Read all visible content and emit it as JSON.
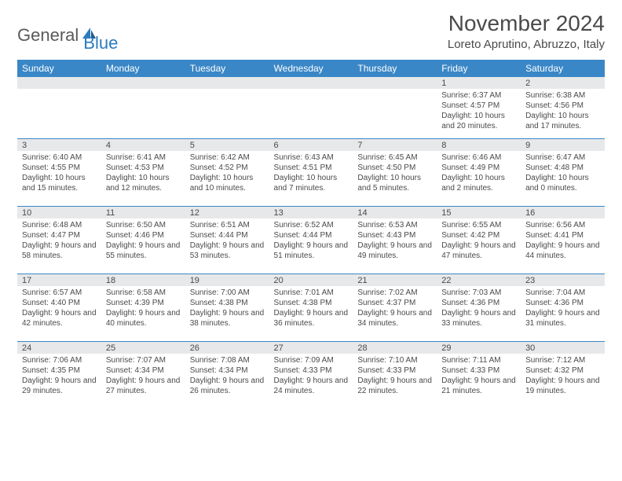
{
  "logo": {
    "part1": "General",
    "part2": "Blue"
  },
  "title": "November 2024",
  "location": "Loreto Aprutino, Abruzzo, Italy",
  "colors": {
    "header_bg": "#3a87c7",
    "header_text": "#ffffff",
    "daynum_bg": "#e7e8e9",
    "border": "#3a87c7",
    "text": "#4a4a4a",
    "logo_blue": "#2b7bbf"
  },
  "weekdays": [
    "Sunday",
    "Monday",
    "Tuesday",
    "Wednesday",
    "Thursday",
    "Friday",
    "Saturday"
  ],
  "weeks": [
    [
      null,
      null,
      null,
      null,
      null,
      {
        "n": "1",
        "sunrise": "6:37 AM",
        "sunset": "4:57 PM",
        "daylight": "10 hours and 20 minutes."
      },
      {
        "n": "2",
        "sunrise": "6:38 AM",
        "sunset": "4:56 PM",
        "daylight": "10 hours and 17 minutes."
      }
    ],
    [
      {
        "n": "3",
        "sunrise": "6:40 AM",
        "sunset": "4:55 PM",
        "daylight": "10 hours and 15 minutes."
      },
      {
        "n": "4",
        "sunrise": "6:41 AM",
        "sunset": "4:53 PM",
        "daylight": "10 hours and 12 minutes."
      },
      {
        "n": "5",
        "sunrise": "6:42 AM",
        "sunset": "4:52 PM",
        "daylight": "10 hours and 10 minutes."
      },
      {
        "n": "6",
        "sunrise": "6:43 AM",
        "sunset": "4:51 PM",
        "daylight": "10 hours and 7 minutes."
      },
      {
        "n": "7",
        "sunrise": "6:45 AM",
        "sunset": "4:50 PM",
        "daylight": "10 hours and 5 minutes."
      },
      {
        "n": "8",
        "sunrise": "6:46 AM",
        "sunset": "4:49 PM",
        "daylight": "10 hours and 2 minutes."
      },
      {
        "n": "9",
        "sunrise": "6:47 AM",
        "sunset": "4:48 PM",
        "daylight": "10 hours and 0 minutes."
      }
    ],
    [
      {
        "n": "10",
        "sunrise": "6:48 AM",
        "sunset": "4:47 PM",
        "daylight": "9 hours and 58 minutes."
      },
      {
        "n": "11",
        "sunrise": "6:50 AM",
        "sunset": "4:46 PM",
        "daylight": "9 hours and 55 minutes."
      },
      {
        "n": "12",
        "sunrise": "6:51 AM",
        "sunset": "4:44 PM",
        "daylight": "9 hours and 53 minutes."
      },
      {
        "n": "13",
        "sunrise": "6:52 AM",
        "sunset": "4:44 PM",
        "daylight": "9 hours and 51 minutes."
      },
      {
        "n": "14",
        "sunrise": "6:53 AM",
        "sunset": "4:43 PM",
        "daylight": "9 hours and 49 minutes."
      },
      {
        "n": "15",
        "sunrise": "6:55 AM",
        "sunset": "4:42 PM",
        "daylight": "9 hours and 47 minutes."
      },
      {
        "n": "16",
        "sunrise": "6:56 AM",
        "sunset": "4:41 PM",
        "daylight": "9 hours and 44 minutes."
      }
    ],
    [
      {
        "n": "17",
        "sunrise": "6:57 AM",
        "sunset": "4:40 PM",
        "daylight": "9 hours and 42 minutes."
      },
      {
        "n": "18",
        "sunrise": "6:58 AM",
        "sunset": "4:39 PM",
        "daylight": "9 hours and 40 minutes."
      },
      {
        "n": "19",
        "sunrise": "7:00 AM",
        "sunset": "4:38 PM",
        "daylight": "9 hours and 38 minutes."
      },
      {
        "n": "20",
        "sunrise": "7:01 AM",
        "sunset": "4:38 PM",
        "daylight": "9 hours and 36 minutes."
      },
      {
        "n": "21",
        "sunrise": "7:02 AM",
        "sunset": "4:37 PM",
        "daylight": "9 hours and 34 minutes."
      },
      {
        "n": "22",
        "sunrise": "7:03 AM",
        "sunset": "4:36 PM",
        "daylight": "9 hours and 33 minutes."
      },
      {
        "n": "23",
        "sunrise": "7:04 AM",
        "sunset": "4:36 PM",
        "daylight": "9 hours and 31 minutes."
      }
    ],
    [
      {
        "n": "24",
        "sunrise": "7:06 AM",
        "sunset": "4:35 PM",
        "daylight": "9 hours and 29 minutes."
      },
      {
        "n": "25",
        "sunrise": "7:07 AM",
        "sunset": "4:34 PM",
        "daylight": "9 hours and 27 minutes."
      },
      {
        "n": "26",
        "sunrise": "7:08 AM",
        "sunset": "4:34 PM",
        "daylight": "9 hours and 26 minutes."
      },
      {
        "n": "27",
        "sunrise": "7:09 AM",
        "sunset": "4:33 PM",
        "daylight": "9 hours and 24 minutes."
      },
      {
        "n": "28",
        "sunrise": "7:10 AM",
        "sunset": "4:33 PM",
        "daylight": "9 hours and 22 minutes."
      },
      {
        "n": "29",
        "sunrise": "7:11 AM",
        "sunset": "4:33 PM",
        "daylight": "9 hours and 21 minutes."
      },
      {
        "n": "30",
        "sunrise": "7:12 AM",
        "sunset": "4:32 PM",
        "daylight": "9 hours and 19 minutes."
      }
    ]
  ]
}
